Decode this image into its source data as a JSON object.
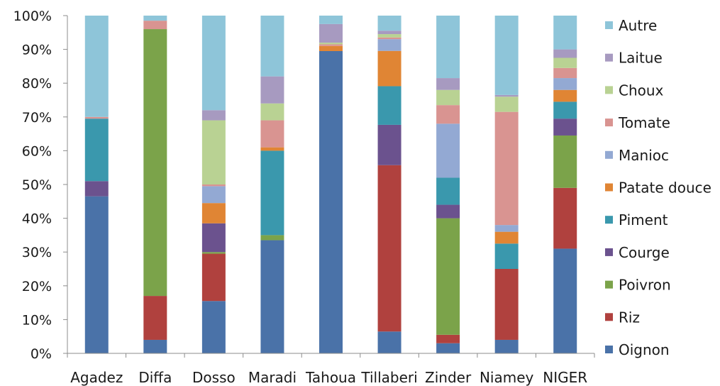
{
  "chart_data": {
    "type": "bar",
    "stacked": true,
    "normalized": true,
    "categories": [
      "Agadez",
      "Diffa",
      "Dosso",
      "Maradi",
      "Tahoua",
      "Tillaberi",
      "Zinder",
      "Niamey",
      "NIGER"
    ],
    "yticks": [
      "0%",
      "10%",
      "20%",
      "30%",
      "40%",
      "50%",
      "60%",
      "70%",
      "80%",
      "90%",
      "100%"
    ],
    "ylim": [
      0,
      100
    ],
    "grid": false,
    "legend_position": "right",
    "series": [
      {
        "name": "Oignon",
        "color": "#4a72a8",
        "values": [
          46.5,
          4.0,
          15.5,
          33.5,
          89.5,
          6.5,
          3.0,
          4.0,
          31.0
        ]
      },
      {
        "name": "Riz",
        "color": "#b0413e",
        "values": [
          0,
          13.0,
          14.0,
          0,
          0,
          49.5,
          2.5,
          21.0,
          18.0
        ]
      },
      {
        "name": "Poivron",
        "color": "#7ba34a",
        "values": [
          0,
          79.0,
          0.5,
          1.5,
          0,
          0,
          34.5,
          0,
          15.5
        ]
      },
      {
        "name": "Courge",
        "color": "#6b528e",
        "values": [
          4.5,
          0,
          8.5,
          0,
          0,
          12.0,
          4.0,
          0,
          5.0
        ]
      },
      {
        "name": "Piment",
        "color": "#3a98ad",
        "values": [
          18.5,
          0,
          0,
          25.0,
          0,
          11.5,
          8.0,
          7.5,
          5.0
        ]
      },
      {
        "name": "Patate douce",
        "color": "#e08534",
        "values": [
          0,
          0,
          6.0,
          1.0,
          1.5,
          10.5,
          0,
          3.5,
          3.5
        ]
      },
      {
        "name": "Manioc",
        "color": "#93a9d3",
        "values": [
          0,
          0,
          5.0,
          0,
          0,
          3.5,
          16.0,
          2.0,
          3.5
        ]
      },
      {
        "name": "Tomate",
        "color": "#d99491",
        "values": [
          0.5,
          2.5,
          0.5,
          8.0,
          0.5,
          0.5,
          5.5,
          33.5,
          3.0
        ]
      },
      {
        "name": "Choux",
        "color": "#b9d293",
        "values": [
          0,
          0,
          19.0,
          5.0,
          0.5,
          1.0,
          4.5,
          4.5,
          3.0
        ]
      },
      {
        "name": "Laitue",
        "color": "#a79ac0",
        "values": [
          0,
          0,
          3.0,
          8.0,
          5.5,
          1.0,
          3.5,
          0.5,
          2.5
        ]
      },
      {
        "name": "Autre",
        "color": "#8ec5d9",
        "values": [
          30.0,
          1.5,
          28.0,
          18.0,
          2.5,
          4.5,
          18.5,
          23.5,
          10.0
        ]
      }
    ]
  }
}
